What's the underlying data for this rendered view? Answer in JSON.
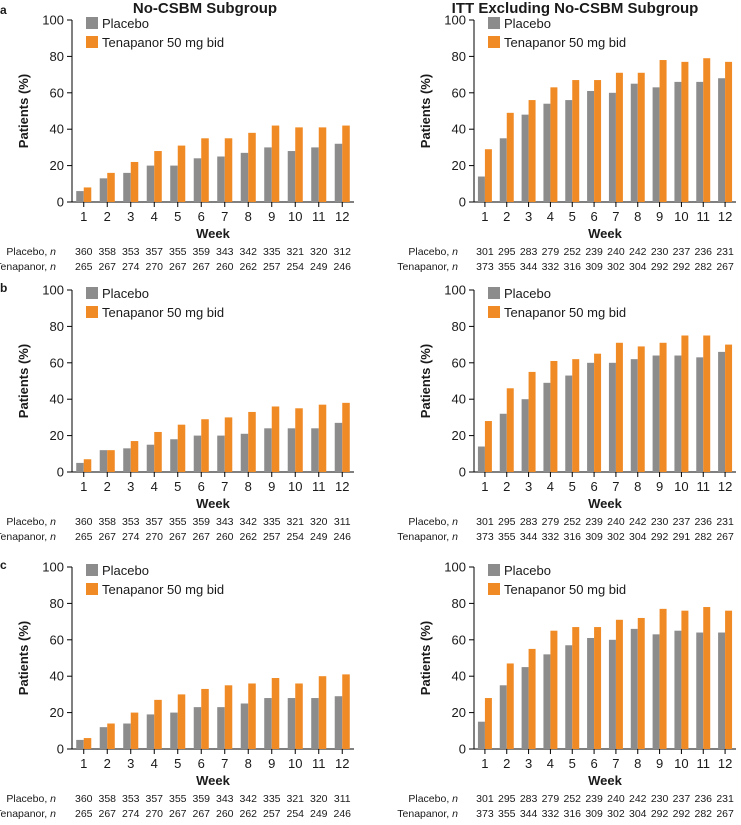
{
  "column_titles": [
    "No-CSBM Subgroup",
    "ITT Excluding No-CSBM Subgroup"
  ],
  "row_labels": [
    "a",
    "b",
    "c"
  ],
  "colors": {
    "placebo": "#8c8c8c",
    "tenapanor": "#f08a24"
  },
  "chart_data": [
    {
      "type": "bar",
      "panel": "a",
      "column": "No-CSBM Subgroup",
      "categories": [
        "1",
        "2",
        "3",
        "4",
        "5",
        "6",
        "7",
        "8",
        "9",
        "10",
        "11",
        "12"
      ],
      "series": [
        {
          "name": "Placebo",
          "values": [
            6,
            13,
            16,
            20,
            20,
            24,
            25,
            27,
            30,
            28,
            30,
            32
          ]
        },
        {
          "name": "Tenapanor 50 mg bid",
          "values": [
            8,
            16,
            22,
            28,
            31,
            35,
            35,
            38,
            42,
            41,
            41,
            42
          ]
        }
      ],
      "ylim": [
        0,
        100
      ],
      "yticks": [
        "0",
        "20",
        "40",
        "60",
        "80",
        "100"
      ],
      "xlabel": "Week",
      "ylabel": "Patients (%)",
      "legend": "top-left",
      "n_rows": [
        {
          "label": "Placebo, ",
          "label_italic": "n",
          "values": [
            "360",
            "358",
            "353",
            "357",
            "355",
            "359",
            "343",
            "342",
            "335",
            "321",
            "320",
            "312"
          ]
        },
        {
          "label": "Tenapanor, ",
          "label_italic": "n",
          "values": [
            "265",
            "267",
            "274",
            "270",
            "267",
            "267",
            "260",
            "262",
            "257",
            "254",
            "249",
            "246"
          ]
        }
      ]
    },
    {
      "type": "bar",
      "panel": "a",
      "column": "ITT Excluding No-CSBM Subgroup",
      "categories": [
        "1",
        "2",
        "3",
        "4",
        "5",
        "6",
        "7",
        "8",
        "9",
        "10",
        "11",
        "12"
      ],
      "series": [
        {
          "name": "Placebo",
          "values": [
            14,
            35,
            48,
            54,
            56,
            61,
            60,
            65,
            63,
            66,
            66,
            68
          ]
        },
        {
          "name": "Tenapanor 50 mg bid",
          "values": [
            29,
            49,
            56,
            63,
            67,
            67,
            71,
            71,
            78,
            77,
            79,
            77
          ]
        }
      ],
      "ylim": [
        0,
        100
      ],
      "yticks": [
        "0",
        "20",
        "40",
        "60",
        "80",
        "100"
      ],
      "xlabel": "Week",
      "ylabel": "Patients (%)",
      "legend": "top-left",
      "n_rows": [
        {
          "label": "Placebo, ",
          "label_italic": "n",
          "values": [
            "301",
            "295",
            "283",
            "279",
            "252",
            "239",
            "240",
            "242",
            "230",
            "237",
            "236",
            "231"
          ]
        },
        {
          "label": "Tenapanor, ",
          "label_italic": "n",
          "values": [
            "373",
            "355",
            "344",
            "332",
            "316",
            "309",
            "302",
            "304",
            "292",
            "292",
            "282",
            "267"
          ]
        }
      ]
    },
    {
      "type": "bar",
      "panel": "b",
      "column": "No-CSBM Subgroup",
      "categories": [
        "1",
        "2",
        "3",
        "4",
        "5",
        "6",
        "7",
        "8",
        "9",
        "10",
        "11",
        "12"
      ],
      "series": [
        {
          "name": "Placebo",
          "values": [
            5,
            12,
            13,
            15,
            18,
            20,
            20,
            21,
            24,
            24,
            24,
            27
          ]
        },
        {
          "name": "Tenapanor 50 mg bid",
          "values": [
            7,
            12,
            17,
            22,
            26,
            29,
            30,
            33,
            36,
            35,
            37,
            38
          ]
        }
      ],
      "ylim": [
        0,
        100
      ],
      "yticks": [
        "0",
        "20",
        "40",
        "60",
        "80",
        "100"
      ],
      "xlabel": "Week",
      "ylabel": "Patients (%)",
      "legend": "top-left",
      "n_rows": [
        {
          "label": "Placebo, ",
          "label_italic": "n",
          "values": [
            "360",
            "358",
            "353",
            "357",
            "355",
            "359",
            "343",
            "342",
            "335",
            "321",
            "320",
            "311"
          ]
        },
        {
          "label": "Tenapanor, ",
          "label_italic": "n",
          "values": [
            "265",
            "267",
            "274",
            "270",
            "267",
            "267",
            "260",
            "262",
            "257",
            "254",
            "249",
            "246"
          ]
        }
      ]
    },
    {
      "type": "bar",
      "panel": "b",
      "column": "ITT Excluding No-CSBM Subgroup",
      "categories": [
        "1",
        "2",
        "3",
        "4",
        "5",
        "6",
        "7",
        "8",
        "9",
        "10",
        "11",
        "12"
      ],
      "series": [
        {
          "name": "Placebo",
          "values": [
            14,
            32,
            40,
            49,
            53,
            60,
            60,
            62,
            64,
            64,
            63,
            66
          ]
        },
        {
          "name": "Tenapanor 50 mg bid",
          "values": [
            28,
            46,
            55,
            61,
            62,
            65,
            71,
            69,
            71,
            75,
            75,
            70
          ]
        }
      ],
      "ylim": [
        0,
        100
      ],
      "yticks": [
        "0",
        "20",
        "40",
        "60",
        "80",
        "100"
      ],
      "xlabel": "Week",
      "ylabel": "Patients (%)",
      "legend": "top-left",
      "n_rows": [
        {
          "label": "Placebo, ",
          "label_italic": "n",
          "values": [
            "301",
            "295",
            "283",
            "279",
            "252",
            "239",
            "240",
            "242",
            "230",
            "237",
            "236",
            "231"
          ]
        },
        {
          "label": "Tenapanor, ",
          "label_italic": "n",
          "values": [
            "373",
            "355",
            "344",
            "332",
            "316",
            "309",
            "302",
            "304",
            "292",
            "291",
            "282",
            "267"
          ]
        }
      ]
    },
    {
      "type": "bar",
      "panel": "c",
      "column": "No-CSBM Subgroup",
      "categories": [
        "1",
        "2",
        "3",
        "4",
        "5",
        "6",
        "7",
        "8",
        "9",
        "10",
        "11",
        "12"
      ],
      "series": [
        {
          "name": "Placebo",
          "values": [
            5,
            12,
            14,
            19,
            20,
            23,
            23,
            25,
            28,
            28,
            28,
            29
          ]
        },
        {
          "name": "Tenapanor 50 mg bid",
          "values": [
            6,
            14,
            20,
            27,
            30,
            33,
            35,
            36,
            39,
            36,
            40,
            41
          ]
        }
      ],
      "ylim": [
        0,
        100
      ],
      "yticks": [
        "0",
        "20",
        "40",
        "60",
        "80",
        "100"
      ],
      "xlabel": "Week",
      "ylabel": "Patients (%)",
      "legend": "top-left",
      "n_rows": [
        {
          "label": "Placebo, ",
          "label_italic": "n",
          "values": [
            "360",
            "358",
            "353",
            "357",
            "355",
            "359",
            "343",
            "342",
            "335",
            "321",
            "320",
            "311"
          ]
        },
        {
          "label": "Tenapanor, ",
          "label_italic": "n",
          "values": [
            "265",
            "267",
            "274",
            "270",
            "267",
            "267",
            "260",
            "262",
            "257",
            "254",
            "249",
            "246"
          ]
        }
      ]
    },
    {
      "type": "bar",
      "panel": "c",
      "column": "ITT Excluding No-CSBM Subgroup",
      "categories": [
        "1",
        "2",
        "3",
        "4",
        "5",
        "6",
        "7",
        "8",
        "9",
        "10",
        "11",
        "12"
      ],
      "series": [
        {
          "name": "Placebo",
          "values": [
            15,
            35,
            45,
            52,
            57,
            61,
            60,
            66,
            63,
            65,
            64,
            64
          ]
        },
        {
          "name": "Tenapanor 50 mg bid",
          "values": [
            28,
            47,
            55,
            65,
            67,
            67,
            71,
            72,
            77,
            76,
            78,
            76
          ]
        }
      ],
      "ylim": [
        0,
        100
      ],
      "yticks": [
        "0",
        "20",
        "40",
        "60",
        "80",
        "100"
      ],
      "xlabel": "Week",
      "ylabel": "Patients (%)",
      "legend": "top-left",
      "n_rows": [
        {
          "label": "Placebo, ",
          "label_italic": "n",
          "values": [
            "301",
            "295",
            "283",
            "279",
            "252",
            "239",
            "240",
            "242",
            "230",
            "237",
            "236",
            "231"
          ]
        },
        {
          "label": "Tenapanor, ",
          "label_italic": "n",
          "values": [
            "373",
            "355",
            "344",
            "332",
            "316",
            "309",
            "302",
            "304",
            "292",
            "292",
            "282",
            "267"
          ]
        }
      ]
    }
  ]
}
